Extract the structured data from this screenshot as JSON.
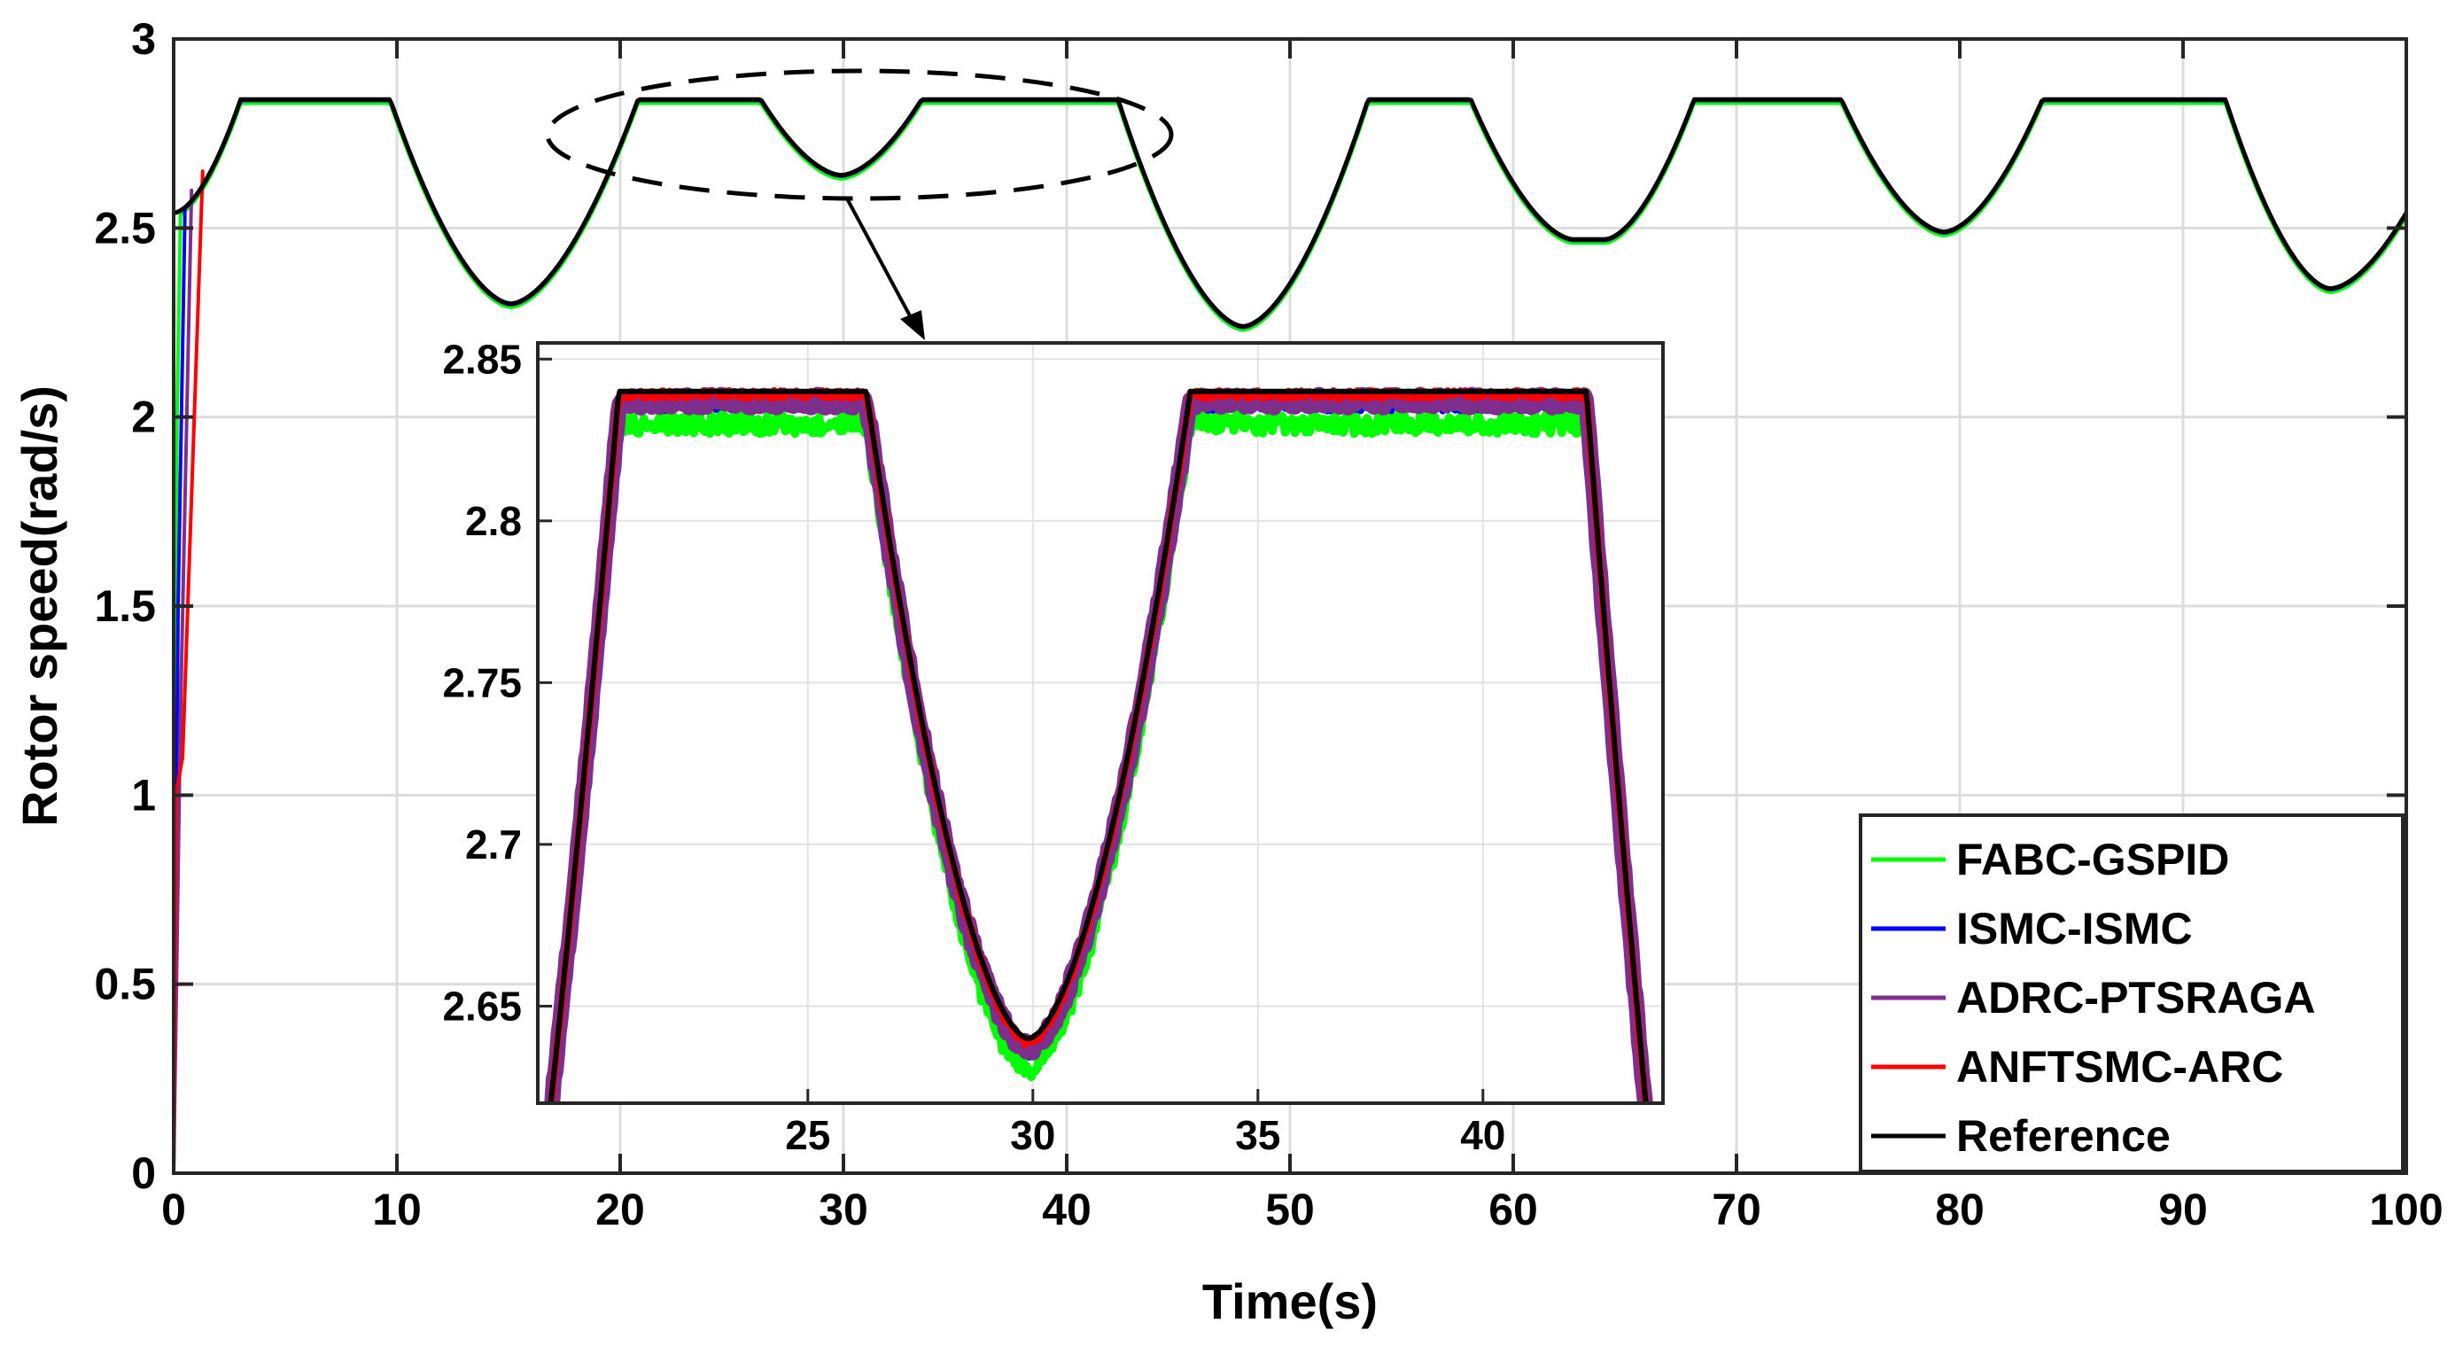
{
  "chart_data": {
    "type": "line",
    "xlabel": "Time(s)",
    "ylabel": "Rotor speed(rad/s)",
    "xlim": [
      0,
      100
    ],
    "ylim": [
      0,
      3
    ],
    "xticks": [
      "0",
      "10",
      "20",
      "30",
      "40",
      "50",
      "60",
      "70",
      "80",
      "90",
      "100"
    ],
    "yticks": [
      "0",
      "0.5",
      "1",
      "1.5",
      "2",
      "2.5",
      "3"
    ],
    "grid": true,
    "legend_position": "bottom-right",
    "reference": {
      "name": "Reference",
      "color": "#000000",
      "x": [
        0,
        3,
        9.7,
        15.1,
        20.8,
        26.3,
        29.9,
        33.5,
        42.3,
        47.9,
        53.5,
        58.1,
        62.7,
        64.1,
        68.1,
        74.7,
        79.3,
        83.7,
        91.9,
        96.6,
        100
      ],
      "y": [
        2.54,
        2.84,
        2.84,
        2.3,
        2.84,
        2.84,
        2.64,
        2.84,
        2.84,
        2.24,
        2.84,
        2.84,
        2.47,
        2.47,
        2.84,
        2.84,
        2.49,
        2.84,
        2.84,
        2.34,
        2.54
      ]
    },
    "series": [
      {
        "name": "FABC-GSPID",
        "color": "#00ff00",
        "startup_x": [
          0,
          0.15,
          0.3
        ],
        "startup_y": [
          0,
          2.0,
          2.52
        ],
        "offset": -0.01
      },
      {
        "name": "ISMC-ISMC",
        "color": "#0000ff",
        "startup_x": [
          0,
          0.2,
          0.5
        ],
        "startup_y": [
          0,
          1.5,
          2.52
        ],
        "offset": -0.003
      },
      {
        "name": "ADRC-PTSRAGA",
        "color": "#7e2f8e",
        "startup_x": [
          0,
          0.3,
          0.8
        ],
        "startup_y": [
          0,
          1.2,
          2.6
        ],
        "offset": -0.002
      },
      {
        "name": "ANFTSMC-ARC",
        "color": "#ff0000",
        "startup_x": [
          0,
          0.1,
          0.4,
          1.3
        ],
        "startup_y": [
          0,
          1.0,
          1.1,
          2.65
        ],
        "offset": 0.0
      },
      {
        "name": "Reference",
        "color": "#000000",
        "startup_x": [],
        "startup_y": [],
        "offset": 0
      }
    ],
    "inset": {
      "xlim": [
        19,
        44
      ],
      "ylim": [
        2.62,
        2.855
      ],
      "xticks": [
        "25",
        "30",
        "35",
        "40"
      ],
      "yticks": [
        "2.65",
        "2.7",
        "2.75",
        "2.8",
        "2.85"
      ]
    }
  }
}
